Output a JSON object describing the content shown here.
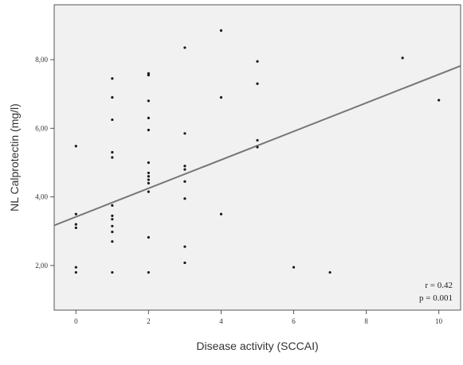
{
  "chart_data": {
    "type": "scatter",
    "title": "",
    "xlabel": "Disease activity (SCCAI)",
    "ylabel": "NL Calprotectin (mg/l)",
    "xlim": [
      -0.6,
      10.6
    ],
    "ylim": [
      0.7,
      9.6
    ],
    "x_ticks": [
      0,
      2,
      4,
      6,
      8,
      10
    ],
    "x_tick_labels": [
      "0",
      "2",
      "4",
      "6",
      "8",
      "10"
    ],
    "y_ticks": [
      2,
      4,
      6,
      8
    ],
    "y_tick_labels": [
      "2,00",
      "4,00",
      "6,00",
      "8,00"
    ],
    "grid": false,
    "points": [
      {
        "x": 0,
        "y": 5.48
      },
      {
        "x": 0,
        "y": 3.5
      },
      {
        "x": 0,
        "y": 3.2
      },
      {
        "x": 0,
        "y": 3.1
      },
      {
        "x": 0,
        "y": 1.95
      },
      {
        "x": 0,
        "y": 1.8
      },
      {
        "x": 1,
        "y": 7.45
      },
      {
        "x": 1,
        "y": 6.9
      },
      {
        "x": 1,
        "y": 6.25
      },
      {
        "x": 1,
        "y": 5.3
      },
      {
        "x": 1,
        "y": 5.15
      },
      {
        "x": 1,
        "y": 3.75
      },
      {
        "x": 1,
        "y": 3.45
      },
      {
        "x": 1,
        "y": 3.35
      },
      {
        "x": 1,
        "y": 3.15
      },
      {
        "x": 1,
        "y": 2.98
      },
      {
        "x": 1,
        "y": 2.7
      },
      {
        "x": 1,
        "y": 1.8
      },
      {
        "x": 2,
        "y": 7.6
      },
      {
        "x": 2,
        "y": 7.55
      },
      {
        "x": 2,
        "y": 6.8
      },
      {
        "x": 2,
        "y": 6.3
      },
      {
        "x": 2,
        "y": 5.95
      },
      {
        "x": 2,
        "y": 5.0
      },
      {
        "x": 2,
        "y": 4.7
      },
      {
        "x": 2,
        "y": 4.6
      },
      {
        "x": 2,
        "y": 4.5
      },
      {
        "x": 2,
        "y": 4.4
      },
      {
        "x": 2,
        "y": 4.15
      },
      {
        "x": 2,
        "y": 2.82
      },
      {
        "x": 2,
        "y": 1.8
      },
      {
        "x": 3,
        "y": 8.35
      },
      {
        "x": 3,
        "y": 5.85
      },
      {
        "x": 3,
        "y": 4.9
      },
      {
        "x": 3,
        "y": 4.8
      },
      {
        "x": 3,
        "y": 4.45
      },
      {
        "x": 3,
        "y": 3.95
      },
      {
        "x": 3,
        "y": 2.55
      },
      {
        "x": 3,
        "y": 2.08
      },
      {
        "x": 4,
        "y": 8.85
      },
      {
        "x": 4,
        "y": 6.9
      },
      {
        "x": 4,
        "y": 3.5
      },
      {
        "x": 5,
        "y": 7.95
      },
      {
        "x": 5,
        "y": 7.3
      },
      {
        "x": 5,
        "y": 5.65
      },
      {
        "x": 5,
        "y": 5.45
      },
      {
        "x": 6,
        "y": 1.95
      },
      {
        "x": 7,
        "y": 1.8
      },
      {
        "x": 9,
        "y": 8.05
      },
      {
        "x": 10,
        "y": 6.82
      }
    ],
    "regression": {
      "intercept": 3.42,
      "slope": 0.415
    },
    "annotations": [
      "r = 0.42",
      "p = 0.001"
    ],
    "colors": {
      "plot_bg": "#f1f1f1",
      "points": "#1a1a1a",
      "line": "#777777",
      "frame": "#555555"
    }
  }
}
